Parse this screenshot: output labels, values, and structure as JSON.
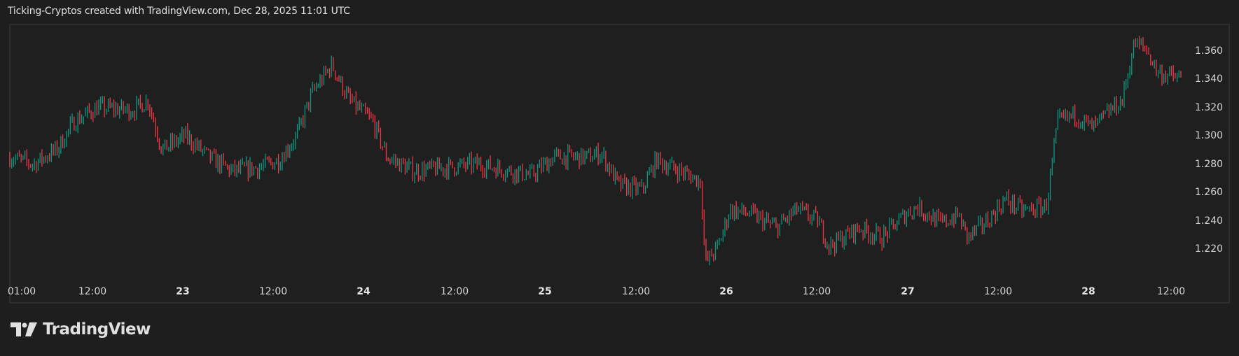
{
  "header": {
    "attribution": "Ticking-Cryptos created with TradingView.com, Dec 28, 2025 11:01 UTC"
  },
  "brand": {
    "logo_icon": "tradingview-logo-icon",
    "name": "TradingView"
  },
  "colors": {
    "background": "#1e1e1e",
    "up": "#089981",
    "down": "#f23645",
    "border": "#2e2e2e",
    "text": "#d6d6d6"
  },
  "price_axis": {
    "labels": [
      "1.360",
      "1.340",
      "1.320",
      "1.300",
      "1.280",
      "1.260",
      "1.240",
      "1.220"
    ]
  },
  "time_axis": {
    "labels": [
      {
        "text": "01:00",
        "day": false
      },
      {
        "text": "12:00",
        "day": false
      },
      {
        "text": "23",
        "day": true
      },
      {
        "text": "12:00",
        "day": false
      },
      {
        "text": "24",
        "day": true
      },
      {
        "text": "12:00",
        "day": false
      },
      {
        "text": "25",
        "day": true
      },
      {
        "text": "12:00",
        "day": false
      },
      {
        "text": "26",
        "day": true
      },
      {
        "text": "12:00",
        "day": false
      },
      {
        "text": "27",
        "day": true
      },
      {
        "text": "12:00",
        "day": false
      },
      {
        "text": "28",
        "day": true
      },
      {
        "text": "12:00",
        "day": false
      }
    ]
  },
  "chart_data": {
    "type": "candlestick",
    "title": "",
    "xlabel": "",
    "ylabel": "",
    "ylim": [
      1.2,
      1.375
    ],
    "grid": false,
    "legend": "none",
    "x_tick_labels": [
      "01:00",
      "12:00",
      "23",
      "12:00",
      "24",
      "12:00",
      "25",
      "12:00",
      "26",
      "12:00",
      "27",
      "12:00",
      "28",
      "12:00"
    ],
    "y_tick_labels": [
      "1.220",
      "1.240",
      "1.260",
      "1.280",
      "1.300",
      "1.320",
      "1.340",
      "1.360"
    ],
    "approx_close_path": {
      "description": "Approximate price path (time as fraction of visible range 0..1, price)",
      "points": [
        [
          0.0,
          1.285
        ],
        [
          0.02,
          1.28
        ],
        [
          0.04,
          1.29
        ],
        [
          0.055,
          1.31
        ],
        [
          0.075,
          1.32
        ],
        [
          0.105,
          1.318
        ],
        [
          0.118,
          1.325
        ],
        [
          0.13,
          1.29
        ],
        [
          0.15,
          1.3
        ],
        [
          0.17,
          1.285
        ],
        [
          0.19,
          1.275
        ],
        [
          0.215,
          1.278
        ],
        [
          0.23,
          1.283
        ],
        [
          0.245,
          1.3
        ],
        [
          0.258,
          1.33
        ],
        [
          0.275,
          1.35
        ],
        [
          0.29,
          1.325
        ],
        [
          0.31,
          1.31
        ],
        [
          0.322,
          1.285
        ],
        [
          0.345,
          1.275
        ],
        [
          0.4,
          1.28
        ],
        [
          0.445,
          1.272
        ],
        [
          0.465,
          1.285
        ],
        [
          0.495,
          1.285
        ],
        [
          0.505,
          1.288
        ],
        [
          0.52,
          1.265
        ],
        [
          0.54,
          1.262
        ],
        [
          0.552,
          1.283
        ],
        [
          0.57,
          1.276
        ],
        [
          0.59,
          1.268
        ],
        [
          0.594,
          1.21
        ],
        [
          0.605,
          1.222
        ],
        [
          0.615,
          1.248
        ],
        [
          0.632,
          1.245
        ],
        [
          0.655,
          1.235
        ],
        [
          0.672,
          1.248
        ],
        [
          0.69,
          1.24
        ],
        [
          0.7,
          1.222
        ],
        [
          0.725,
          1.235
        ],
        [
          0.745,
          1.228
        ],
        [
          0.765,
          1.245
        ],
        [
          0.775,
          1.25
        ],
        [
          0.795,
          1.238
        ],
        [
          0.81,
          1.244
        ],
        [
          0.818,
          1.228
        ],
        [
          0.835,
          1.24
        ],
        [
          0.85,
          1.255
        ],
        [
          0.865,
          1.247
        ],
        [
          0.885,
          1.25
        ],
        [
          0.89,
          1.28
        ],
        [
          0.895,
          1.31
        ],
        [
          0.91,
          1.315
        ],
        [
          0.925,
          1.305
        ],
        [
          0.94,
          1.318
        ],
        [
          0.95,
          1.325
        ],
        [
          0.955,
          1.345
        ],
        [
          0.96,
          1.365
        ],
        [
          0.97,
          1.362
        ],
        [
          0.98,
          1.345
        ],
        [
          1.0,
          1.34
        ]
      ]
    },
    "notable": {
      "high": 1.371,
      "low": 1.203,
      "last_close": 1.34
    }
  }
}
